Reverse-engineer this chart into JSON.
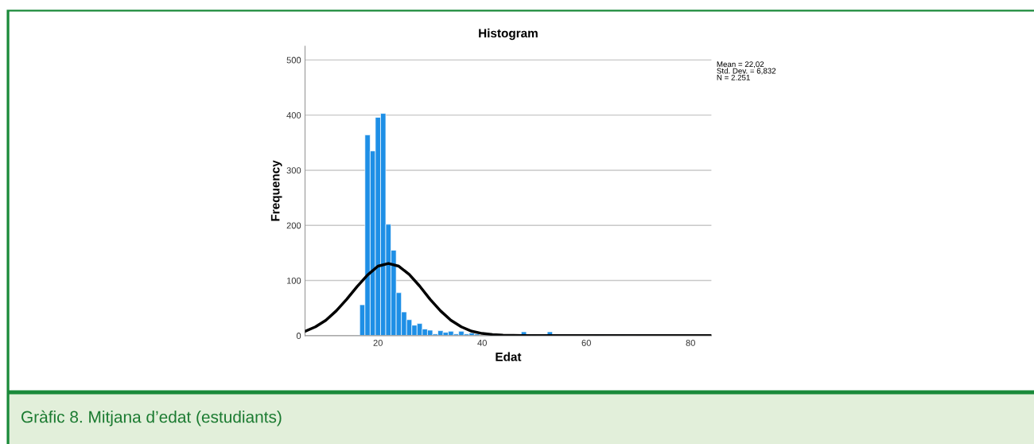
{
  "chart_data": {
    "type": "histogram",
    "title": "Histogram",
    "xlabel": "Edat",
    "ylabel": "Frequency",
    "bins": [
      15.5,
      16.5,
      17.5,
      18.5,
      19.5,
      20.5,
      21.5,
      22.5,
      23.5,
      24.5,
      25.5,
      26.5,
      27.5,
      28.5,
      29.5,
      30.5,
      31.5,
      32.5,
      33.5,
      34.5,
      35.5,
      36.5,
      37.5,
      38.5,
      39.5,
      40.5,
      41.5,
      42.5,
      43.5,
      44.5,
      45.5,
      46.5,
      47.5,
      48.5,
      49.5,
      50.5,
      51.5,
      52.5,
      53.5,
      54.5,
      55.5,
      56.5,
      57.5,
      58.5,
      59.5,
      60.5,
      61.5,
      62.5,
      63.5,
      64.5,
      65.5,
      66.5,
      67.5,
      68.5,
      69.5,
      70.5
    ],
    "values": [
      1,
      56,
      364,
      335,
      396,
      403,
      202,
      155,
      78,
      43,
      29,
      19,
      22,
      12,
      10,
      3,
      9,
      6,
      8,
      3,
      8,
      3,
      5,
      3,
      null,
      1,
      1,
      1,
      1,
      2,
      2,
      2,
      7,
      2,
      2,
      1,
      1,
      7,
      1,
      1,
      1,
      0,
      1,
      1,
      2,
      null,
      2,
      2,
      1,
      1,
      1,
      2,
      1,
      1,
      2
    ],
    "color": "#1e8fe6",
    "series": [
      {
        "type": "line",
        "color": "#000000",
        "x": [
          6,
          8,
          10,
          12,
          14,
          16,
          18,
          20,
          22,
          24,
          26,
          28,
          30,
          32,
          34,
          36,
          38,
          40,
          42,
          44,
          48,
          84
        ],
        "values": [
          8,
          16,
          28,
          45,
          66,
          89,
          110,
          126,
          131,
          126,
          111,
          90,
          66,
          45,
          28,
          16,
          8,
          4,
          2,
          1,
          0,
          0
        ]
      }
    ],
    "xlim": [
      6,
      84
    ],
    "xticks": [
      20,
      40,
      60,
      80
    ],
    "ylim": [
      0,
      525
    ],
    "yticks": [
      0,
      100,
      200,
      300,
      400,
      500
    ],
    "grid": "y",
    "annotations": [
      "Mean = 22,02\nStd. Dev. = 6,832\nN = 2.251",
      "Gràfic 8. Mitjana d’edat (estudiants)"
    ]
  }
}
